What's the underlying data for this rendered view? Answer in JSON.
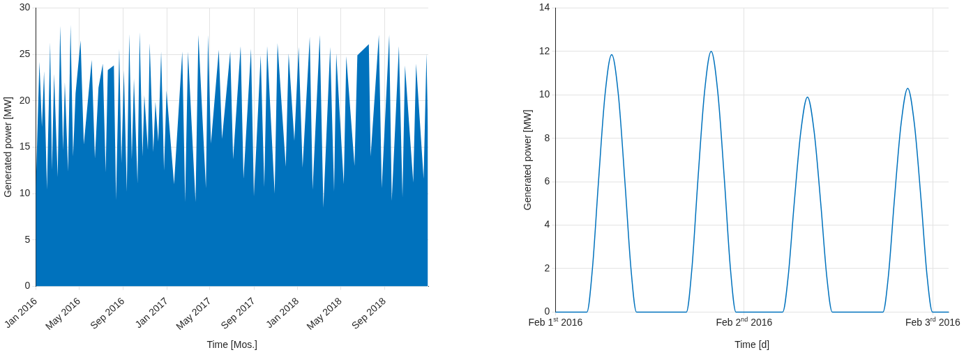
{
  "chart_data": [
    {
      "type": "area",
      "xlabel": "Time [Mos.]",
      "ylabel": "Generated power [MW]",
      "color": "#0072bd",
      "grid": true,
      "xlim": [
        "2016-01-01",
        "2019-01-01"
      ],
      "ylim": [
        0,
        30
      ],
      "yticks": [
        0,
        5,
        10,
        15,
        20,
        25,
        30
      ],
      "xticks": [
        {
          "value": "2016-01-01",
          "label": "Jan 2016"
        },
        {
          "value": "2016-05-01",
          "label": "May 2016"
        },
        {
          "value": "2016-09-01",
          "label": "Sep 2016"
        },
        {
          "value": "2017-01-01",
          "label": "Jan 2017"
        },
        {
          "value": "2017-05-01",
          "label": "May 2017"
        },
        {
          "value": "2017-09-01",
          "label": "Sep 2017"
        },
        {
          "value": "2018-01-01",
          "label": "Jan 2018"
        },
        {
          "value": "2018-05-01",
          "label": "May 2018"
        },
        {
          "value": "2018-09-01",
          "label": "Sep 2018"
        }
      ],
      "x": [
        "2016-01-01",
        "2016-01-11",
        "2016-01-18",
        "2016-01-24",
        "2016-02-01",
        "2016-02-10",
        "2016-02-15",
        "2016-02-21",
        "2016-03-02",
        "2016-03-09",
        "2016-03-17",
        "2016-03-22",
        "2016-03-31",
        "2016-04-07",
        "2016-04-14",
        "2016-04-21",
        "2016-05-05",
        "2016-05-14",
        "2016-06-05",
        "2016-06-14",
        "2016-06-24",
        "2016-07-06",
        "2016-07-14",
        "2016-07-20",
        "2016-08-06",
        "2016-08-12",
        "2016-08-21",
        "2016-08-27",
        "2016-09-03",
        "2016-09-11",
        "2016-09-18",
        "2016-09-25",
        "2016-10-01",
        "2016-10-11",
        "2016-10-17",
        "2016-10-25",
        "2016-10-30",
        "2016-11-09",
        "2016-11-14",
        "2016-11-24",
        "2016-11-30",
        "2016-12-08",
        "2016-12-16",
        "2016-12-24",
        "2016-12-31",
        "2017-01-21",
        "2017-02-13",
        "2017-02-21",
        "2017-03-01",
        "2017-03-22",
        "2017-03-30",
        "2017-04-20",
        "2017-04-26",
        "2017-05-04",
        "2017-05-26",
        "2017-06-04",
        "2017-06-27",
        "2017-07-05",
        "2017-07-26",
        "2017-08-03",
        "2017-08-24",
        "2017-09-01",
        "2017-09-20",
        "2017-09-30",
        "2017-10-08",
        "2017-10-29",
        "2017-11-06",
        "2017-11-29",
        "2017-12-07",
        "2017-12-23",
        "2018-01-04",
        "2018-01-15",
        "2018-02-04",
        "2018-02-12",
        "2018-03-04",
        "2018-03-14",
        "2018-04-02",
        "2018-04-13",
        "2018-04-19",
        "2018-05-10",
        "2018-05-17",
        "2018-06-09",
        "2018-06-17",
        "2018-07-19",
        "2018-07-24",
        "2018-08-16",
        "2018-08-24",
        "2018-09-14",
        "2018-09-21",
        "2018-10-11",
        "2018-10-21",
        "2018-10-28",
        "2018-11-20",
        "2018-11-28",
        "2018-12-19",
        "2018-12-27",
        "2018-12-31"
      ],
      "values": [
        10.7,
        24.2,
        17.2,
        23.2,
        10.4,
        26.3,
        12.6,
        22.9,
        11.8,
        28.1,
        14.7,
        22.0,
        12.4,
        28.2,
        14.0,
        20.8,
        26.5,
        15.3,
        24.4,
        13.8,
        21.4,
        24.0,
        12.3,
        23.3,
        23.8,
        9.3,
        25.6,
        13.3,
        23.3,
        10.2,
        27.2,
        13.7,
        22.4,
        11.1,
        27.4,
        14.0,
        20.6,
        14.7,
        26.2,
        14.5,
        19.9,
        15.6,
        25.3,
        12.5,
        21.1,
        11.0,
        25.3,
        9.1,
        25.3,
        9.1,
        27.1,
        10.6,
        27.1,
        15.4,
        25.5,
        15.9,
        25.3,
        13.7,
        25.9,
        11.6,
        25.6,
        9.7,
        24.9,
        10.7,
        25.9,
        10.0,
        26.2,
        12.9,
        25.1,
        15.7,
        25.8,
        12.8,
        26.9,
        10.4,
        27.1,
        8.5,
        25.8,
        10.2,
        25.1,
        11.0,
        24.8,
        13.0,
        24.9,
        26.1,
        14.0,
        27.1,
        10.6,
        27.1,
        9.2,
        25.9,
        9.6,
        23.8,
        11.2,
        24.0,
        11.6,
        25.1,
        17.1
      ]
    },
    {
      "type": "line",
      "xlabel": "Time [d]",
      "ylabel": "Generated power [MW]",
      "color": "#0072bd",
      "grid": true,
      "xlim": [
        "2016-02-01T00:00",
        "2016-02-03T02:00"
      ],
      "ylim": [
        0,
        14
      ],
      "yticks": [
        0,
        2,
        4,
        6,
        8,
        10,
        12,
        14
      ],
      "xticks": [
        {
          "value": "2016-02-01",
          "label": "Feb 1$^{st}$ 2016"
        },
        {
          "value": "2016-02-02",
          "label": "Feb 2$^{nd}$ 2016"
        },
        {
          "value": "2016-02-03",
          "label": "Feb 3$^{rd}$ 2016"
        }
      ],
      "x": [
        "2016-02-01T00:00",
        "2016-02-01T04:00",
        "2016-02-01T04:42",
        "2016-02-01T05:27",
        "2016-02-01T06:18",
        "2016-02-01T07:09",
        "2016-02-01T08:00",
        "2016-02-01T08:51",
        "2016-02-01T09:36",
        "2016-02-01T10:18",
        "2016-02-01T16:39",
        "2016-02-01T17:21",
        "2016-02-01T18:06",
        "2016-02-01T18:57",
        "2016-02-01T19:48",
        "2016-02-01T20:39",
        "2016-02-01T21:30",
        "2016-02-01T22:15",
        "2016-02-01T22:57",
        "2016-02-02T04:54",
        "2016-02-02T05:36",
        "2016-02-02T06:21",
        "2016-02-02T07:12",
        "2016-02-02T08:03",
        "2016-02-02T08:54",
        "2016-02-02T09:45",
        "2016-02-02T10:30",
        "2016-02-02T11:12",
        "2016-02-02T17:39",
        "2016-02-02T18:21",
        "2016-02-02T19:06",
        "2016-02-02T19:57",
        "2016-02-02T20:48",
        "2016-02-02T21:39",
        "2016-02-02T22:30",
        "2016-02-02T23:15",
        "2016-02-02T23:57",
        "2016-02-03T02:00"
      ],
      "values": [
        0,
        0,
        2.0,
        5.9,
        10.0,
        11.85,
        10.0,
        5.9,
        2.0,
        0,
        0,
        2.0,
        6.0,
        10.1,
        12.0,
        10.1,
        6.0,
        2.0,
        0,
        0,
        1.65,
        4.95,
        8.3,
        9.9,
        8.3,
        4.95,
        1.65,
        0,
        0,
        1.7,
        5.15,
        8.65,
        10.3,
        8.65,
        5.15,
        1.7,
        0,
        0
      ]
    }
  ]
}
